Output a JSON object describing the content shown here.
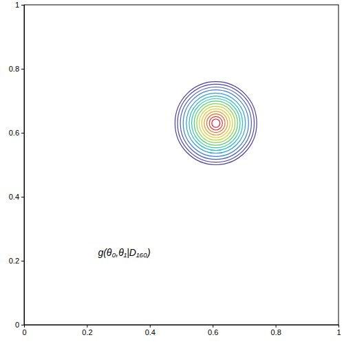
{
  "chart_data": {
    "type": "contour",
    "annotation": "g(θ₀,θ₁|D₁₆₀)",
    "xlim": [
      0,
      1
    ],
    "ylim": [
      0,
      1
    ],
    "xticks": [
      0,
      0.2,
      0.4,
      0.6,
      0.8,
      1
    ],
    "yticks": [
      0,
      0.2,
      0.4,
      0.6,
      0.8,
      1
    ],
    "center": {
      "x": 0.61,
      "y": 0.63
    },
    "radii": [
      0.13,
      0.122,
      0.113,
      0.104,
      0.094,
      0.085,
      0.077,
      0.069,
      0.061,
      0.053,
      0.045,
      0.037,
      0.029,
      0.021,
      0.013
    ],
    "colors": [
      "#4b3fa0",
      "#4b45b0",
      "#4a5cc4",
      "#3d7fd6",
      "#2f9fd8",
      "#25bcc8",
      "#2ec9a0",
      "#4fcf6e",
      "#86d64c",
      "#c3d83a",
      "#e8c431",
      "#f09a2c",
      "#ee6a2a",
      "#e53a2a",
      "#d41f2a"
    ]
  }
}
